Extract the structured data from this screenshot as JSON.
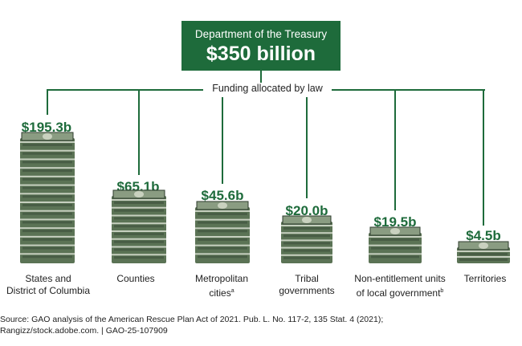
{
  "header": {
    "title": "Department of the Treasury",
    "amount": "$350 billion"
  },
  "subheading": "Funding allocated by law",
  "chart_data": {
    "type": "bar",
    "categories": [
      "States and District of Columbia",
      "Counties",
      "Metropolitan cities",
      "Tribal governments",
      "Non-entitlement units of local government",
      "Territories"
    ],
    "values": [
      195.3,
      65.1,
      45.6,
      20.0,
      19.5,
      4.5
    ],
    "value_labels": [
      "$195.3b",
      "$65.1b",
      "$45.6b",
      "$20.0b",
      "$19.5b",
      "$4.5b"
    ],
    "unit": "billions of dollars",
    "total": 350
  },
  "categories": [
    {
      "label_lines": [
        "States and",
        "District of Columbia"
      ],
      "sup": ""
    },
    {
      "label_lines": [
        "Counties"
      ],
      "sup": ""
    },
    {
      "label_lines": [
        "Metropolitan",
        "cities"
      ],
      "sup": "a"
    },
    {
      "label_lines": [
        "Tribal",
        "governments"
      ],
      "sup": ""
    },
    {
      "label_lines": [
        "Non-entitlement units",
        "of local government"
      ],
      "sup": "b"
    },
    {
      "label_lines": [
        "Territories"
      ],
      "sup": ""
    }
  ],
  "source": {
    "line1": "Source: GAO analysis of the American Rescue Plan Act of 2021. Pub. L. No. 117-2, 135 Stat. 4 (2021);",
    "line2": "Rangizz/stock.adobe.com.  |  GAO-25-107909"
  },
  "colors": {
    "accent": "#1e6b3b",
    "money_green": "#5b7355"
  }
}
